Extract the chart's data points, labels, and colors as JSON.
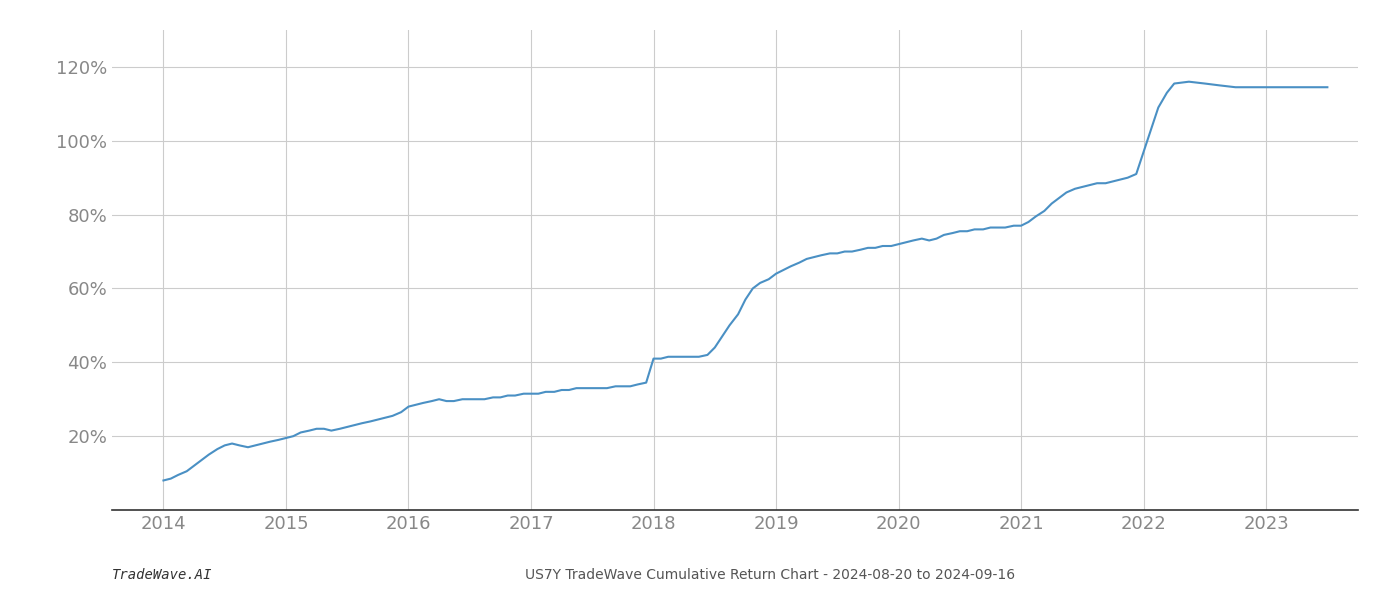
{
  "title": "",
  "xlabel": "",
  "ylabel": "",
  "footer_left": "TradeWave.AI",
  "footer_right": "US7Y TradeWave Cumulative Return Chart - 2024-08-20 to 2024-09-16",
  "line_color": "#4a90c4",
  "background_color": "#ffffff",
  "grid_color": "#cccccc",
  "x_values": [
    2014.0,
    2014.06,
    2014.12,
    2014.19,
    2014.25,
    2014.31,
    2014.37,
    2014.44,
    2014.5,
    2014.56,
    2014.62,
    2014.69,
    2014.75,
    2014.81,
    2014.87,
    2014.94,
    2015.0,
    2015.06,
    2015.12,
    2015.19,
    2015.25,
    2015.31,
    2015.37,
    2015.44,
    2015.5,
    2015.56,
    2015.62,
    2015.69,
    2015.75,
    2015.81,
    2015.87,
    2015.94,
    2016.0,
    2016.06,
    2016.12,
    2016.19,
    2016.25,
    2016.31,
    2016.37,
    2016.44,
    2016.5,
    2016.56,
    2016.62,
    2016.69,
    2016.75,
    2016.81,
    2016.87,
    2016.94,
    2017.0,
    2017.06,
    2017.12,
    2017.19,
    2017.25,
    2017.31,
    2017.37,
    2017.44,
    2017.5,
    2017.56,
    2017.62,
    2017.69,
    2017.75,
    2017.81,
    2017.87,
    2017.94,
    2018.0,
    2018.06,
    2018.12,
    2018.19,
    2018.25,
    2018.31,
    2018.37,
    2018.44,
    2018.5,
    2018.56,
    2018.62,
    2018.69,
    2018.75,
    2018.81,
    2018.87,
    2018.94,
    2019.0,
    2019.06,
    2019.12,
    2019.19,
    2019.25,
    2019.31,
    2019.37,
    2019.44,
    2019.5,
    2019.56,
    2019.62,
    2019.69,
    2019.75,
    2019.81,
    2019.87,
    2019.94,
    2020.0,
    2020.06,
    2020.12,
    2020.19,
    2020.25,
    2020.31,
    2020.37,
    2020.44,
    2020.5,
    2020.56,
    2020.62,
    2020.69,
    2020.75,
    2020.81,
    2020.87,
    2020.94,
    2021.0,
    2021.06,
    2021.12,
    2021.19,
    2021.25,
    2021.31,
    2021.37,
    2021.44,
    2021.5,
    2021.56,
    2021.62,
    2021.69,
    2021.75,
    2021.81,
    2021.87,
    2021.94,
    2022.0,
    2022.06,
    2022.12,
    2022.19,
    2022.25,
    2022.37,
    2022.5,
    2022.62,
    2022.75,
    2023.0,
    2023.25,
    2023.5
  ],
  "y_values": [
    8.0,
    8.5,
    9.5,
    10.5,
    12.0,
    13.5,
    15.0,
    16.5,
    17.5,
    18.0,
    17.5,
    17.0,
    17.5,
    18.0,
    18.5,
    19.0,
    19.5,
    20.0,
    21.0,
    21.5,
    22.0,
    22.0,
    21.5,
    22.0,
    22.5,
    23.0,
    23.5,
    24.0,
    24.5,
    25.0,
    25.5,
    26.5,
    28.0,
    28.5,
    29.0,
    29.5,
    30.0,
    29.5,
    29.5,
    30.0,
    30.0,
    30.0,
    30.0,
    30.5,
    30.5,
    31.0,
    31.0,
    31.5,
    31.5,
    31.5,
    32.0,
    32.0,
    32.5,
    32.5,
    33.0,
    33.0,
    33.0,
    33.0,
    33.0,
    33.5,
    33.5,
    33.5,
    34.0,
    34.5,
    41.0,
    41.0,
    41.5,
    41.5,
    41.5,
    41.5,
    41.5,
    42.0,
    44.0,
    47.0,
    50.0,
    53.0,
    57.0,
    60.0,
    61.5,
    62.5,
    64.0,
    65.0,
    66.0,
    67.0,
    68.0,
    68.5,
    69.0,
    69.5,
    69.5,
    70.0,
    70.0,
    70.5,
    71.0,
    71.0,
    71.5,
    71.5,
    72.0,
    72.5,
    73.0,
    73.5,
    73.0,
    73.5,
    74.5,
    75.0,
    75.5,
    75.5,
    76.0,
    76.0,
    76.5,
    76.5,
    76.5,
    77.0,
    77.0,
    78.0,
    79.5,
    81.0,
    83.0,
    84.5,
    86.0,
    87.0,
    87.5,
    88.0,
    88.5,
    88.5,
    89.0,
    89.5,
    90.0,
    91.0,
    97.0,
    103.0,
    109.0,
    113.0,
    115.5,
    116.0,
    115.5,
    115.0,
    114.5,
    114.5,
    114.5,
    114.5
  ],
  "ylim": [
    0,
    130
  ],
  "yticks": [
    20,
    40,
    60,
    80,
    100,
    120
  ],
  "xlim": [
    2013.58,
    2023.75
  ],
  "xticks": [
    2014,
    2015,
    2016,
    2017,
    2018,
    2019,
    2020,
    2021,
    2022,
    2023
  ],
  "line_width": 1.5,
  "footer_fontsize": 10,
  "tick_fontsize": 13,
  "axis_color": "#333333",
  "tick_color": "#888888"
}
